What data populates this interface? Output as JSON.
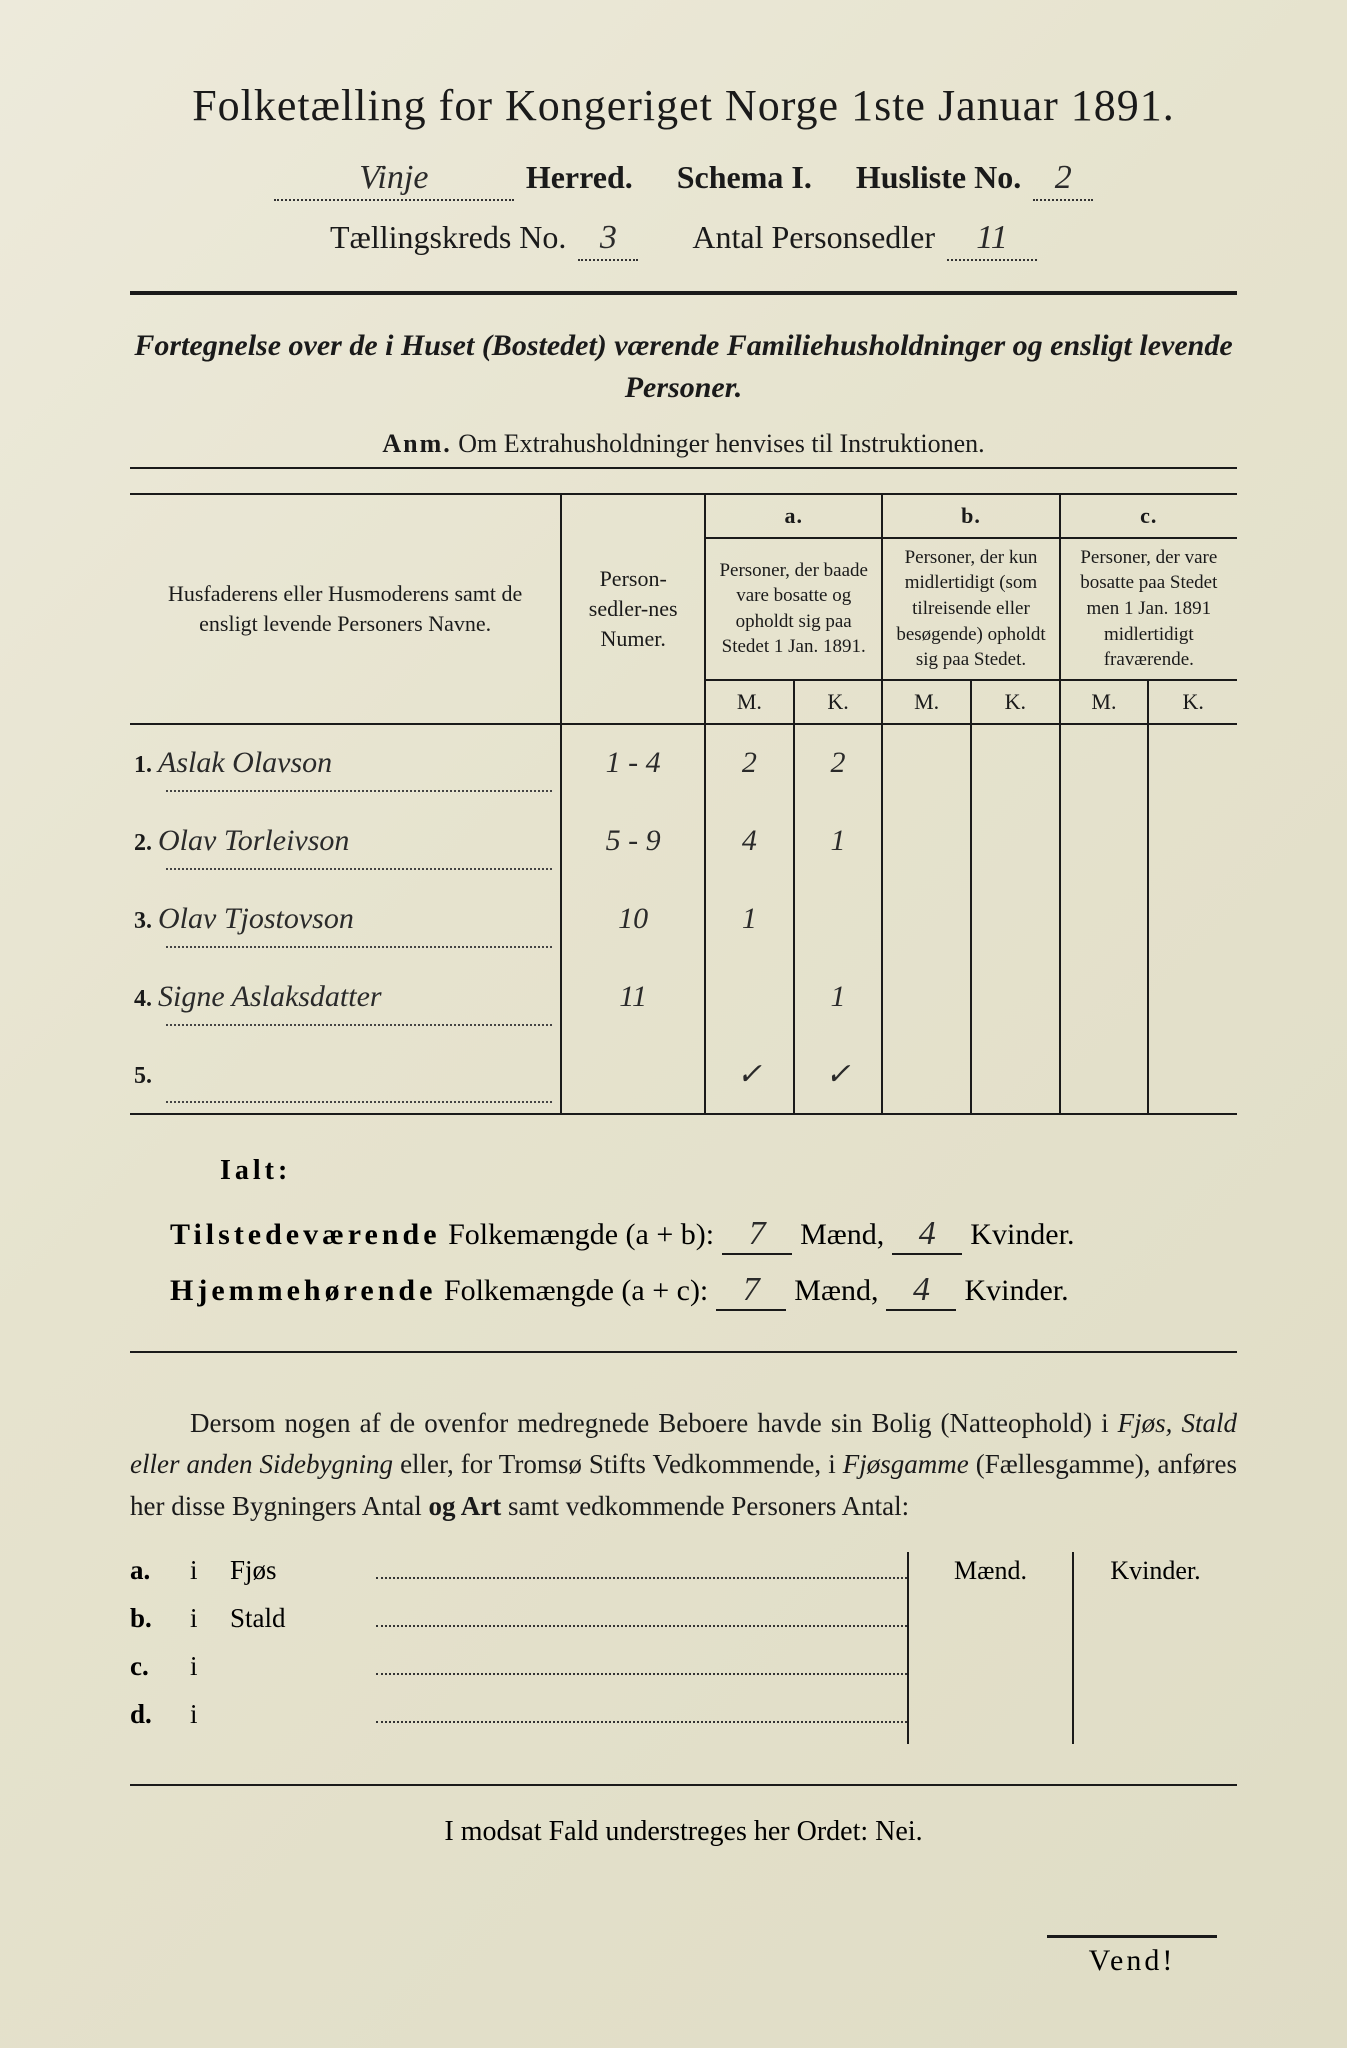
{
  "title": "Folketælling for Kongeriget Norge 1ste Januar 1891.",
  "header": {
    "herred_value": "Vinje",
    "herred_label": "Herred.",
    "schema_label": "Schema I.",
    "husliste_label": "Husliste No.",
    "husliste_value": "2",
    "kreds_label": "Tællingskreds No.",
    "kreds_value": "3",
    "antal_label": "Antal Personsedler",
    "antal_value": "11"
  },
  "subtitle": "Fortegnelse over de i Huset (Bostedet) værende Familiehusholdninger og ensligt levende Personer.",
  "anm_label": "Anm.",
  "anm_text": "Om Extrahusholdninger henvises til Instruktionen.",
  "table": {
    "col_names": "Husfaderens eller Husmoderens samt de ensligt levende Personers Navne.",
    "col_numer": "Person-sedler-nes Numer.",
    "col_a_label": "a.",
    "col_a_text": "Personer, der baade vare bosatte og opholdt sig paa Stedet 1 Jan. 1891.",
    "col_b_label": "b.",
    "col_b_text": "Personer, der kun midlertidigt (som tilreisende eller besøgende) opholdt sig paa Stedet.",
    "col_c_label": "c.",
    "col_c_text": "Personer, der vare bosatte paa Stedet men 1 Jan. 1891 midlertidigt fraværende.",
    "mk_m": "M.",
    "mk_k": "K.",
    "rows": [
      {
        "n": "1.",
        "name": "Aslak Olavson",
        "numer": "1 - 4",
        "am": "2",
        "ak": "2",
        "bm": "",
        "bk": "",
        "cm": "",
        "ck": ""
      },
      {
        "n": "2.",
        "name": "Olav Torleivson",
        "numer": "5 - 9",
        "am": "4",
        "ak": "1",
        "bm": "",
        "bk": "",
        "cm": "",
        "ck": ""
      },
      {
        "n": "3.",
        "name": "Olav Tjostovson",
        "numer": "10",
        "am": "1",
        "ak": "",
        "bm": "",
        "bk": "",
        "cm": "",
        "ck": ""
      },
      {
        "n": "4.",
        "name": "Signe Aslaksdatter",
        "numer": "11",
        "am": "",
        "ak": "1",
        "bm": "",
        "bk": "",
        "cm": "",
        "ck": ""
      },
      {
        "n": "5.",
        "name": "",
        "numer": "",
        "am": "✓",
        "ak": "✓",
        "bm": "",
        "bk": "",
        "cm": "",
        "ck": ""
      }
    ]
  },
  "ialt": "Ialt:",
  "summary": {
    "line1_label": "Tilstedeværende",
    "line1_rest": "Folkemængde (a + b):",
    "line2_label": "Hjemmehørende",
    "line2_rest": "Folkemængde (a + c):",
    "maend": "Mænd,",
    "kvinder": "Kvinder.",
    "l1_m": "7",
    "l1_k": "4",
    "l2_m": "7",
    "l2_k": "4"
  },
  "paragraph": {
    "p1": "Dersom nogen af de ovenfor medregnede Beboere havde sin Bolig (Natteophold) i ",
    "it1": "Fjøs, Stald eller anden Sidebygning",
    "p2": " eller, for Tromsø Stifts Vedkommende, i ",
    "it2": "Fjøsgamme",
    "p3": " (Fællesgamme), anføres her disse Bygningers Antal ",
    "b1": "og Art",
    "p4": " samt vedkommende Personers Antal:"
  },
  "side": {
    "maend": "Mænd.",
    "kvinder": "Kvinder.",
    "rows": [
      {
        "lbl": "a.",
        "i": "i",
        "txt": "Fjøs"
      },
      {
        "lbl": "b.",
        "i": "i",
        "txt": "Stald"
      },
      {
        "lbl": "c.",
        "i": "i",
        "txt": ""
      },
      {
        "lbl": "d.",
        "i": "i",
        "txt": ""
      }
    ]
  },
  "nei_line": "I modsat Fald understreges her Ordet: Nei.",
  "vend": "Vend!"
}
